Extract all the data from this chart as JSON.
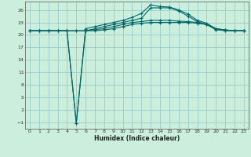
{
  "xlabel": "Humidex (Indice chaleur)",
  "bg_color": "#cceedd",
  "grid_color": "#99cccc",
  "line_color": "#006666",
  "ylim": [
    -2.5,
    28
  ],
  "xlim": [
    -0.5,
    23.5
  ],
  "yticks": [
    -1,
    2,
    5,
    8,
    11,
    14,
    17,
    20,
    23,
    26
  ],
  "xticks": [
    0,
    1,
    2,
    3,
    4,
    5,
    6,
    7,
    8,
    9,
    10,
    11,
    12,
    13,
    14,
    15,
    16,
    17,
    18,
    19,
    20,
    21,
    22,
    23
  ],
  "line1_x": [
    0,
    1,
    2,
    3,
    4,
    5,
    6,
    7,
    8,
    9,
    10,
    11,
    12,
    13,
    14,
    15,
    16,
    17,
    18,
    19,
    20,
    21,
    22,
    23
  ],
  "line1_y": [
    21.0,
    21.0,
    21.0,
    21.0,
    21.0,
    -1.2,
    21.5,
    22.0,
    22.5,
    23.0,
    23.5,
    24.2,
    25.2,
    27.2,
    26.8,
    26.7,
    26.0,
    25.0,
    23.5,
    22.8,
    21.5,
    21.2,
    21.0,
    21.0
  ],
  "line2_x": [
    0,
    1,
    2,
    3,
    4,
    5,
    6,
    7,
    8,
    9,
    10,
    11,
    12,
    13,
    14,
    15,
    16,
    17,
    18,
    19,
    20,
    21,
    22,
    23
  ],
  "line2_y": [
    21.0,
    21.0,
    21.0,
    21.0,
    21.0,
    -1.2,
    21.0,
    21.5,
    22.0,
    22.5,
    23.0,
    23.5,
    24.0,
    26.5,
    26.5,
    26.5,
    25.8,
    24.5,
    23.2,
    22.5,
    21.3,
    21.0,
    21.0,
    21.0
  ],
  "line3_x": [
    0,
    1,
    2,
    3,
    4,
    5,
    6,
    7,
    8,
    9,
    10,
    11,
    12,
    13,
    14,
    15,
    16,
    17,
    18,
    19,
    20,
    21,
    22,
    23
  ],
  "line3_y": [
    21.0,
    21.0,
    21.0,
    21.0,
    21.0,
    21.0,
    21.0,
    21.3,
    21.5,
    22.0,
    22.5,
    23.0,
    23.2,
    23.5,
    23.5,
    23.5,
    23.3,
    23.2,
    23.0,
    22.5,
    21.5,
    21.2,
    21.0,
    21.0
  ],
  "line4_x": [
    0,
    1,
    2,
    3,
    4,
    5,
    6,
    7,
    8,
    9,
    10,
    11,
    12,
    13,
    14,
    15,
    16,
    17,
    18,
    19,
    20,
    21,
    22,
    23
  ],
  "line4_y": [
    21.0,
    21.0,
    21.0,
    21.0,
    21.0,
    21.0,
    21.0,
    21.0,
    21.2,
    21.5,
    22.0,
    22.5,
    22.8,
    23.0,
    23.0,
    23.0,
    23.0,
    23.0,
    22.8,
    22.5,
    21.3,
    21.1,
    21.0,
    21.0
  ]
}
